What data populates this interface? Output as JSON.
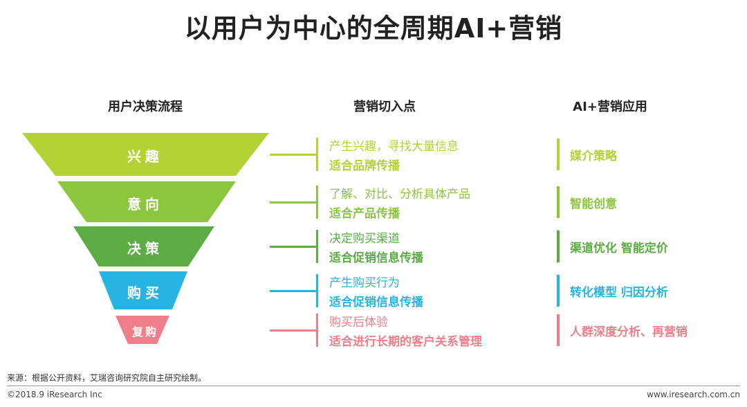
{
  "title": "以用户为中心的全周期AI+营销",
  "headers": {
    "process": "用户决策流程",
    "entry": "营销切入点",
    "app": "AI+营销应用"
  },
  "stages": [
    {
      "label": "兴趣",
      "color": "#b2d235",
      "entry_line1": "产生兴趣，寻找大量信息",
      "entry_line2": "适合品牌传播",
      "app": "媒介策略"
    },
    {
      "label": "意向",
      "color": "#8cc63e",
      "entry_line1": "了解、对比、分析具体产品",
      "entry_line2": "适合产品传播",
      "app": "智能创意"
    },
    {
      "label": "决策",
      "color": "#5aac43",
      "entry_line1": "决定购买渠道",
      "entry_line2": "适合促销信息传播",
      "app": "渠道优化 智能定价"
    },
    {
      "label": "购买",
      "color": "#28b4e3",
      "entry_line1": "产生购买行为",
      "entry_line2": "适合促销信息传播",
      "app": "转化模型 归因分析"
    },
    {
      "label": "复购",
      "color": "#ee7f8a",
      "entry_line1": "购买后体验",
      "entry_line2": "适合进行长期的客户关系管理",
      "app": "人群深度分析、再营销"
    }
  ],
  "source": "来源：根据公开资料，艾瑞咨询研究院自主研究绘制。",
  "footer": {
    "copyright": "©2018.9 iResearch Inc",
    "url": "www.iresearch.com.cn"
  }
}
